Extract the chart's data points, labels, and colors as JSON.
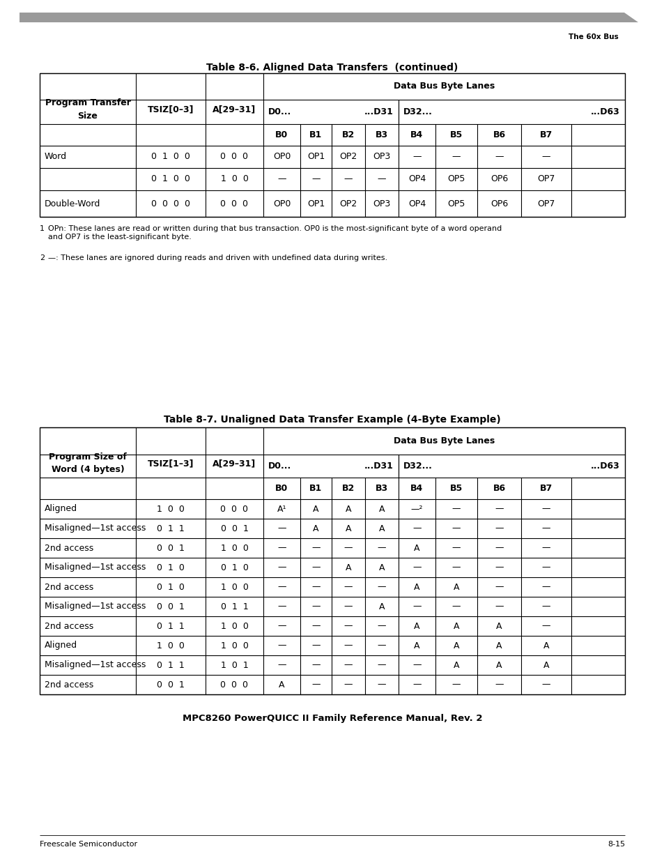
{
  "page_title_right": "The 60x Bus",
  "table1_title": "Table 8-6. Aligned Data Transfers  (continued)",
  "table1_col_header1": "Program Transfer\nSize",
  "table1_col_header2": "TSIZ[0–3]",
  "table1_col_header3": "A[29–31]",
  "table1_data_bus_label": "Data Bus Byte Lanes",
  "table1_sub_headers": [
    "B0",
    "B1",
    "B2",
    "B3",
    "B4",
    "B5",
    "B6",
    "B7"
  ],
  "table1_rows": [
    [
      "Word",
      "0  1  0  0",
      "0  0  0",
      "OP0",
      "OP1",
      "OP2",
      "OP3",
      "—",
      "—",
      "—",
      "—"
    ],
    [
      "",
      "0  1  0  0",
      "1  0  0",
      "—",
      "—",
      "—",
      "—",
      "OP4",
      "OP5",
      "OP6",
      "OP7"
    ],
    [
      "Double-Word",
      "0  0  0  0",
      "0  0  0",
      "OP0",
      "OP1",
      "OP2",
      "OP3",
      "OP4",
      "OP5",
      "OP6",
      "OP7"
    ]
  ],
  "table1_fn1_super": "1",
  "table1_fn1_text": "  OPη: These lanes are read or written during that bus transaction. OP0 is the most-significant byte of a word operand\n    and OP7 is the least-significant byte.",
  "table1_fn2_super": "2",
  "table1_fn2_text": "  —: These lanes are ignored during reads and driven with undefined data during writes.",
  "table2_title": "Table 8-7. Unaligned Data Transfer Example (4-Byte Example)",
  "table2_col_header1": "Program Size of\nWord (4 bytes)",
  "table2_col_header2": "TSIZ[1–3]",
  "table2_col_header3": "A[29–31]",
  "table2_data_bus_label": "Data Bus Byte Lanes",
  "table2_sub_headers": [
    "B0",
    "B1",
    "B2",
    "B3",
    "B4",
    "B5",
    "B6",
    "B7"
  ],
  "table2_rows": [
    [
      "Aligned",
      "1  0  0",
      "0  0  0",
      "A¹",
      "A",
      "A",
      "A",
      "—²",
      "—",
      "—",
      "—"
    ],
    [
      "Misaligned—1st access",
      "0  1  1",
      "0  0  1",
      "—",
      "A",
      "A",
      "A",
      "—",
      "—",
      "—",
      "—"
    ],
    [
      "2nd access",
      "0  0  1",
      "1  0  0",
      "—",
      "—",
      "—",
      "—",
      "A",
      "—",
      "—",
      "—"
    ],
    [
      "Misaligned—1st access",
      "0  1  0",
      "0  1  0",
      "—",
      "—",
      "A",
      "A",
      "—",
      "—",
      "—",
      "—"
    ],
    [
      "2nd access",
      "0  1  0",
      "1  0  0",
      "—",
      "—",
      "—",
      "—",
      "A",
      "A",
      "—",
      "—"
    ],
    [
      "Misaligned—1st access",
      "0  0  1",
      "0  1  1",
      "—",
      "—",
      "—",
      "A",
      "—",
      "—",
      "—",
      "—"
    ],
    [
      "2nd access",
      "0  1  1",
      "1  0  0",
      "—",
      "—",
      "—",
      "—",
      "A",
      "A",
      "A",
      "—"
    ],
    [
      "Aligned",
      "1  0  0",
      "1  0  0",
      "—",
      "—",
      "—",
      "—",
      "A",
      "A",
      "A",
      "A"
    ],
    [
      "Misaligned—1st access",
      "0  1  1",
      "1  0  1",
      "—",
      "—",
      "—",
      "—",
      "—",
      "A",
      "A",
      "A"
    ],
    [
      "2nd access",
      "0  0  1",
      "0  0  0",
      "A",
      "—",
      "—",
      "—",
      "—",
      "—",
      "—",
      "—"
    ]
  ],
  "footer_center": "MPC8260 PowerQUICC II Family Reference Manual, Rev. 2",
  "footer_left": "Freescale Semiconductor",
  "footer_right": "8-15",
  "bg_color": "#ffffff",
  "header_bar_color": "#9a9a9a"
}
